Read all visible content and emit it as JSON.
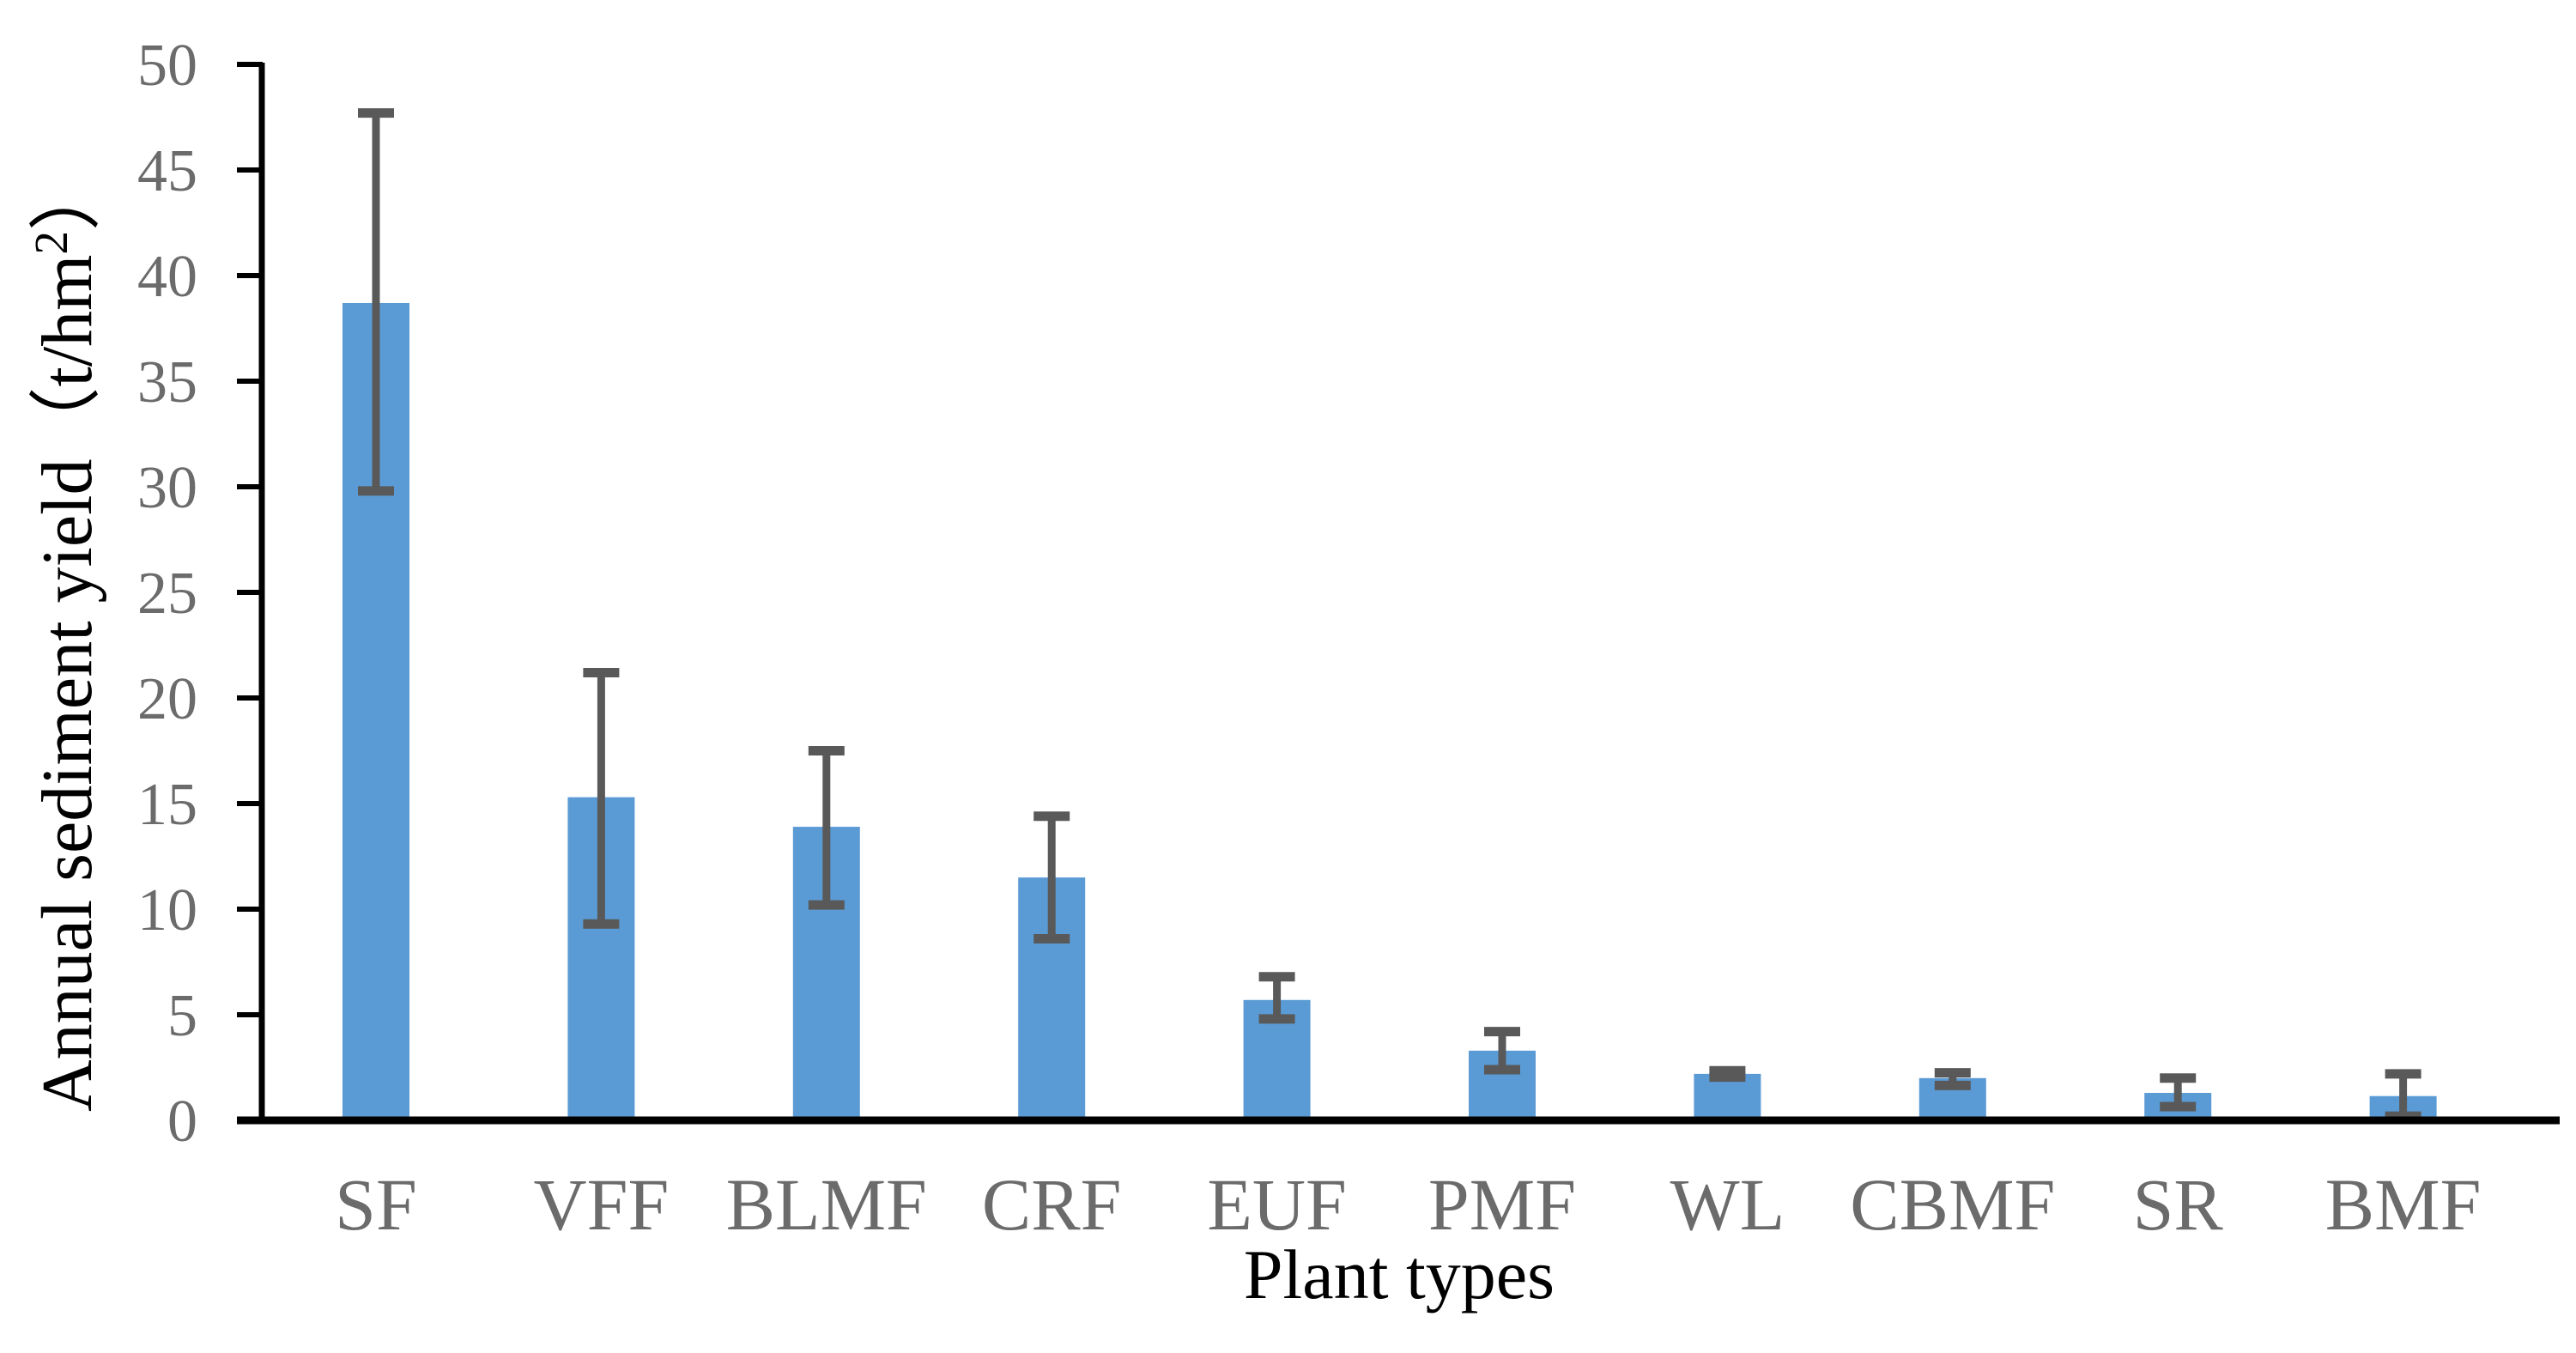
{
  "chart_data": {
    "type": "bar",
    "title": "",
    "xlabel": "Plant types",
    "ylabel": "Annual sediment yield（t/hm²）",
    "categories": [
      "SF",
      "VFF",
      "BLMF",
      "CRF",
      "EUF",
      "PMF",
      "WL",
      "CBMF",
      "SR",
      "BMF"
    ],
    "values": [
      38.7,
      15.3,
      13.9,
      11.5,
      5.7,
      3.3,
      2.2,
      2.0,
      1.3,
      1.15
    ],
    "error_upper": [
      47.7,
      21.2,
      17.5,
      14.4,
      6.8,
      4.2,
      2.35,
      2.25,
      2.0,
      2.2
    ],
    "error_lower": [
      29.8,
      9.3,
      10.2,
      8.6,
      4.8,
      2.4,
      2.05,
      1.65,
      0.65,
      0.2
    ],
    "ylim": [
      0,
      50
    ],
    "yticks": [
      0,
      5,
      10,
      15,
      20,
      25,
      30,
      35,
      40,
      45,
      50
    ],
    "grid": false,
    "legend": null,
    "bar_color": "#5B9BD5",
    "error_bar_color": "#595959",
    "axis_color": "#000000",
    "tick_label_color": "#6B6B6B",
    "category_label_color": "#6B6B6B",
    "axis_title_color": "#000000"
  }
}
